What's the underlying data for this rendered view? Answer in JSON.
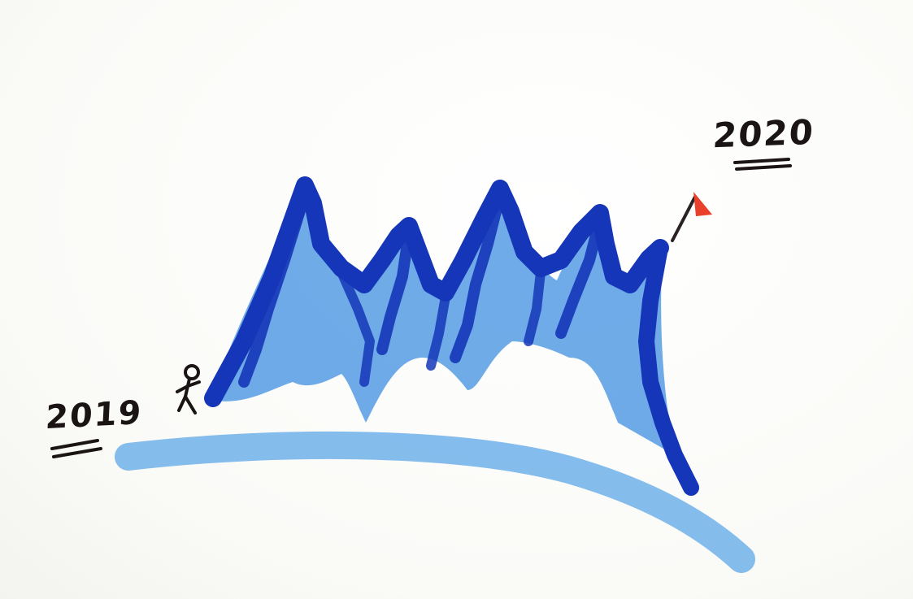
{
  "labels": {
    "start_year": "2019",
    "end_year": "2020"
  },
  "colors": {
    "ink": "#1a1414",
    "mountain_dark": "#1536b8",
    "mountain_light": "#3f8fe0",
    "ground": "#6fb0ea",
    "flag": "#e8402a"
  }
}
